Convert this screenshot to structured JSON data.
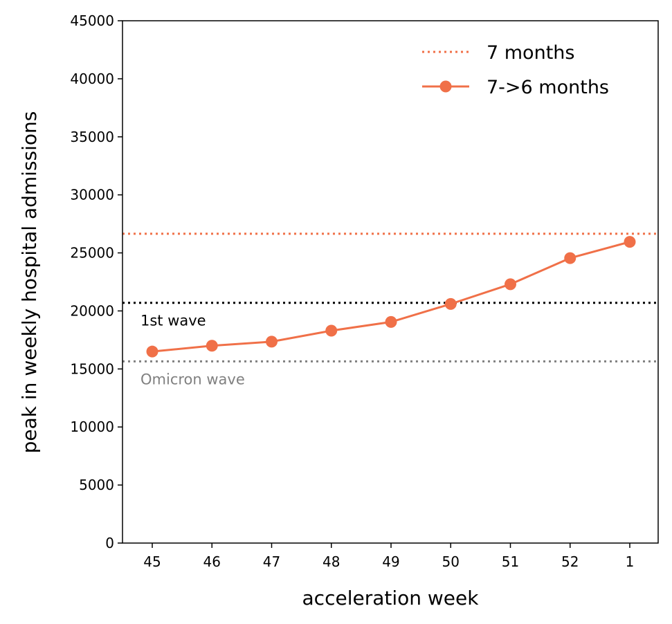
{
  "chart_data": {
    "type": "line",
    "xlabel": "acceleration week",
    "ylabel": "peak in weekly hospital admissions",
    "categories": [
      "45",
      "46",
      "47",
      "48",
      "49",
      "50",
      "51",
      "52",
      "1"
    ],
    "ylim": [
      0,
      45000
    ],
    "yticks": [
      0,
      5000,
      10000,
      15000,
      20000,
      25000,
      30000,
      35000,
      40000,
      45000
    ],
    "grid": false,
    "legend_position": "top-right",
    "series": [
      {
        "name": "7->6 months",
        "style": "line-with-markers",
        "color": "#f07048",
        "values": [
          16500,
          17000,
          17350,
          18300,
          19050,
          20600,
          22300,
          24550,
          25950
        ]
      }
    ],
    "reference_lines": [
      {
        "name": "7 months",
        "y": 26650,
        "color": "#f07048",
        "style": "dotted",
        "in_legend": true
      },
      {
        "label": "1st wave",
        "y": 20700,
        "color": "#000000",
        "style": "dotted",
        "in_legend": false
      },
      {
        "label": "Omicron wave",
        "y": 15650,
        "color": "#808080",
        "style": "dotted",
        "in_legend": false
      }
    ]
  }
}
